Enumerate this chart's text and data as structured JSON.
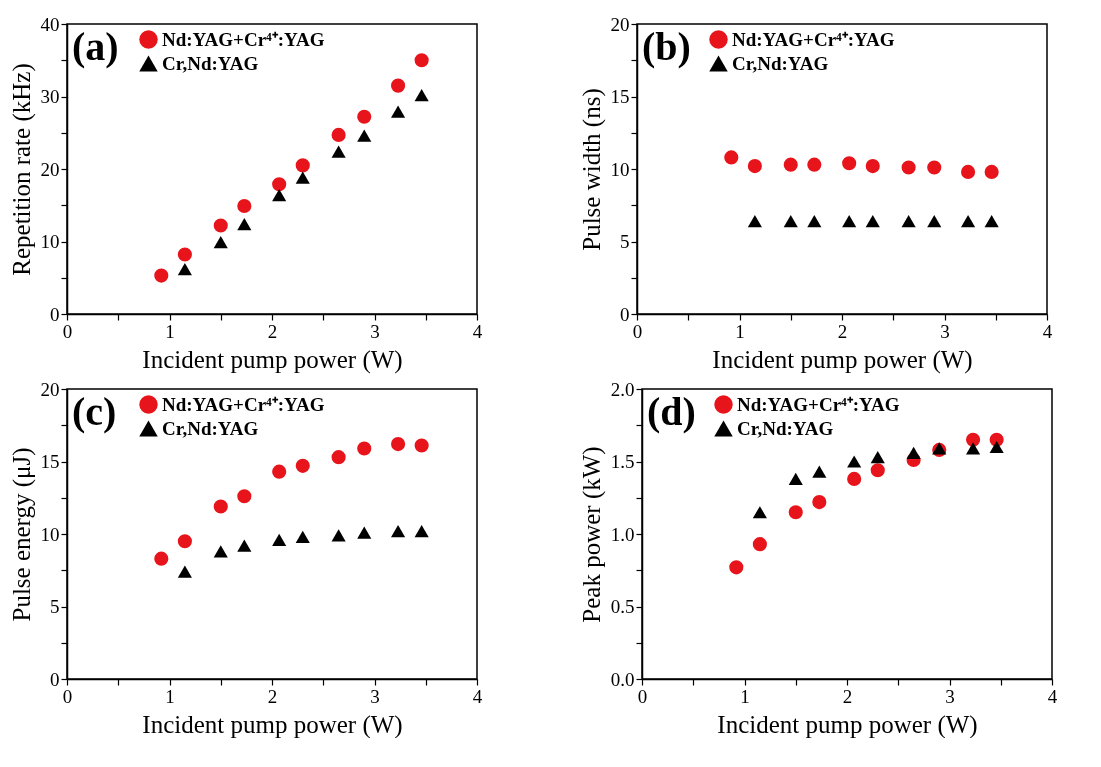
{
  "chart_data": [
    {
      "type": "scatter",
      "annotations": [
        "(a)"
      ],
      "xlabel": "Incident pump power (W)",
      "ylabel": "Repetition rate (kHz)",
      "xlim": [
        0,
        4
      ],
      "ylim": [
        0,
        40
      ],
      "xticks": [
        0,
        {
          "value": 0.5,
          "label": null
        },
        1,
        {
          "value": 1.5,
          "label": null
        },
        2,
        {
          "value": 2.5,
          "label": null
        },
        3,
        {
          "value": 3.5,
          "label": null
        },
        4
      ],
      "yticks": [
        0,
        {
          "value": 5,
          "label": null
        },
        10,
        {
          "value": 15,
          "label": null
        },
        20,
        {
          "value": 25,
          "label": null
        },
        30,
        {
          "value": 35,
          "label": null
        },
        40
      ],
      "legend": "top left",
      "series": [
        {
          "name": "Nd:YAG+Cr⁴⁺:YAG",
          "color": "#e8141b",
          "marker": "circle",
          "x": [
            0.92,
            1.15,
            1.5,
            1.73,
            2.07,
            2.3,
            2.65,
            2.9,
            3.23,
            3.46
          ],
          "values": [
            5.3,
            8.2,
            12.2,
            14.9,
            17.9,
            20.5,
            24.7,
            27.2,
            31.5,
            35.0
          ]
        },
        {
          "name": "Cr,Nd:YAG",
          "color": "#000000",
          "marker": "triangle",
          "x": [
            1.15,
            1.5,
            1.73,
            2.07,
            2.3,
            2.65,
            2.9,
            3.23,
            3.46
          ],
          "values": [
            6.2,
            9.9,
            12.4,
            16.4,
            18.8,
            22.4,
            24.6,
            27.9,
            30.2
          ]
        }
      ]
    },
    {
      "type": "scatter",
      "annotations": [
        "(b)"
      ],
      "xlabel": "Incident pump power (W)",
      "ylabel": "Pulse width (ns)",
      "xlim": [
        0,
        4
      ],
      "ylim": [
        0,
        20
      ],
      "xticks": [
        0,
        {
          "value": 0.5,
          "label": null
        },
        1,
        {
          "value": 1.5,
          "label": null
        },
        2,
        {
          "value": 2.5,
          "label": null
        },
        3,
        {
          "value": 3.5,
          "label": null
        },
        4
      ],
      "yticks": [
        0,
        {
          "value": 2.5,
          "label": null
        },
        5,
        {
          "value": 7.5,
          "label": null
        },
        10,
        {
          "value": 12.5,
          "label": null
        },
        15,
        {
          "value": 17.5,
          "label": null
        },
        20
      ],
      "legend": "top left",
      "series": [
        {
          "name": "Nd:YAG+Cr⁴⁺:YAG",
          "color": "#e8141b",
          "marker": "circle",
          "x": [
            0.92,
            1.15,
            1.5,
            1.73,
            2.07,
            2.3,
            2.65,
            2.9,
            3.23,
            3.46
          ],
          "values": [
            10.8,
            10.2,
            10.3,
            10.3,
            10.4,
            10.2,
            10.1,
            10.1,
            9.8,
            9.8
          ]
        },
        {
          "name": "Cr,Nd:YAG",
          "color": "#000000",
          "marker": "triangle",
          "x": [
            1.15,
            1.5,
            1.73,
            2.07,
            2.3,
            2.65,
            2.9,
            3.23,
            3.46
          ],
          "values": [
            6.4,
            6.4,
            6.4,
            6.4,
            6.4,
            6.4,
            6.4,
            6.4,
            6.4
          ]
        }
      ]
    },
    {
      "type": "scatter",
      "annotations": [
        "(c)"
      ],
      "xlabel": "Incident pump power (W)",
      "ylabel": "Pulse energy (μJ)",
      "xlim": [
        0,
        4
      ],
      "ylim": [
        0,
        20
      ],
      "xticks": [
        0,
        {
          "value": 0.5,
          "label": null
        },
        1,
        {
          "value": 1.5,
          "label": null
        },
        2,
        {
          "value": 2.5,
          "label": null
        },
        3,
        {
          "value": 3.5,
          "label": null
        },
        4
      ],
      "yticks": [
        0,
        {
          "value": 2.5,
          "label": null
        },
        5,
        {
          "value": 7.5,
          "label": null
        },
        10,
        {
          "value": 12.5,
          "label": null
        },
        15,
        {
          "value": 17.5,
          "label": null
        },
        20
      ],
      "legend": "top left",
      "series": [
        {
          "name": "Nd:YAG+Cr⁴⁺:YAG",
          "color": "#e8141b",
          "marker": "circle",
          "x": [
            0.92,
            1.15,
            1.5,
            1.73,
            2.07,
            2.3,
            2.65,
            2.9,
            3.23,
            3.46
          ],
          "values": [
            8.3,
            9.5,
            11.9,
            12.6,
            14.3,
            14.7,
            15.3,
            15.9,
            16.2,
            16.1
          ]
        },
        {
          "name": "Cr,Nd:YAG",
          "color": "#000000",
          "marker": "triangle",
          "x": [
            1.15,
            1.5,
            1.73,
            2.07,
            2.3,
            2.65,
            2.9,
            3.23,
            3.46
          ],
          "values": [
            7.4,
            8.8,
            9.2,
            9.6,
            9.8,
            9.9,
            10.1,
            10.2,
            10.2
          ]
        }
      ]
    },
    {
      "type": "scatter",
      "annotations": [
        "(d)"
      ],
      "xlabel": "Incident pump power (W)",
      "ylabel": "Peak power (kW)",
      "xlim": [
        0,
        4
      ],
      "ylim": [
        0,
        2
      ],
      "xticks": [
        0,
        {
          "value": 0.5,
          "label": null
        },
        1,
        {
          "value": 1.5,
          "label": null
        },
        2,
        {
          "value": 2.5,
          "label": null
        },
        3,
        {
          "value": 3.5,
          "label": null
        },
        4
      ],
      "yticks": [
        {
          "value": 0,
          "label": "0.0"
        },
        {
          "value": 0.25,
          "label": null
        },
        0.5,
        {
          "value": 0.75,
          "label": null
        },
        {
          "value": 1,
          "label": "1.0"
        },
        {
          "value": 1.25,
          "label": null
        },
        1.5,
        {
          "value": 1.75,
          "label": null
        },
        {
          "value": 2,
          "label": "2.0"
        }
      ],
      "legend": "top left",
      "series": [
        {
          "name": "Nd:YAG+Cr⁴⁺:YAG",
          "color": "#e8141b",
          "marker": "circle",
          "x": [
            0.92,
            1.15,
            1.5,
            1.73,
            2.07,
            2.3,
            2.65,
            2.9,
            3.23,
            3.46
          ],
          "values": [
            0.77,
            0.93,
            1.15,
            1.22,
            1.38,
            1.44,
            1.51,
            1.58,
            1.65,
            1.65
          ]
        },
        {
          "name": "Cr,Nd:YAG",
          "color": "#000000",
          "marker": "triangle",
          "x": [
            1.15,
            1.5,
            1.73,
            2.07,
            2.3,
            2.65,
            2.9,
            3.23,
            3.46
          ],
          "values": [
            1.15,
            1.38,
            1.43,
            1.5,
            1.53,
            1.56,
            1.59,
            1.59,
            1.6
          ]
        }
      ]
    }
  ]
}
